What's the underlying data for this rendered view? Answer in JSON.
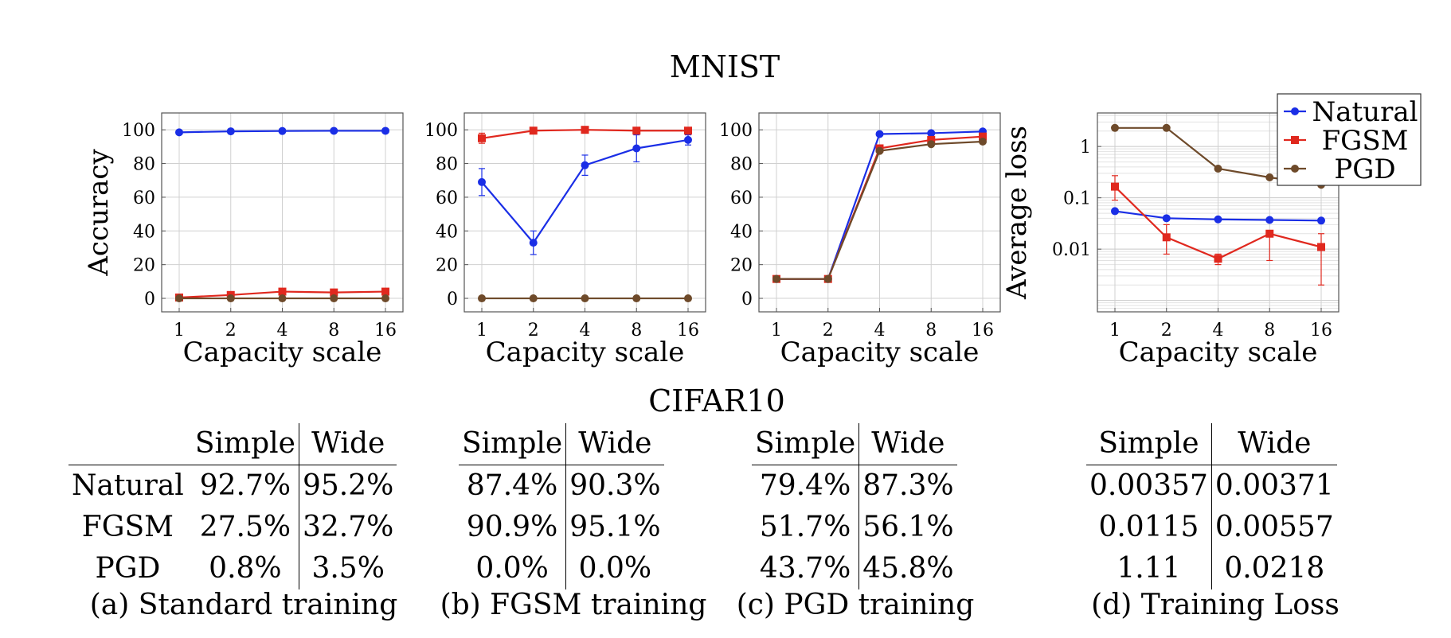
{
  "top_title": "MNIST",
  "bottom_title": "CIFAR10",
  "colors": {
    "Natural": "#1a2ee6",
    "FGSM": "#e0281e",
    "PGD": "#6e4a2a"
  },
  "chart_data": [
    {
      "type": "line",
      "panel": "a",
      "x": [
        "1",
        "2",
        "4",
        "8",
        "16"
      ],
      "xlabel": "Capacity scale",
      "ylabel": "Accuracy",
      "ylim": [
        -8,
        110
      ],
      "yticks": [
        "0",
        "20",
        "40",
        "60",
        "80",
        "100"
      ],
      "grid": true,
      "series": [
        {
          "name": "Natural",
          "marker": "circle",
          "values": [
            98.5,
            99.1,
            99.3,
            99.4,
            99.4
          ],
          "err": [
            0,
            0,
            0,
            0,
            0
          ]
        },
        {
          "name": "FGSM",
          "marker": "square",
          "values": [
            0.5,
            2.0,
            4.0,
            3.5,
            4.0
          ],
          "err": [
            0,
            0,
            0,
            0,
            0
          ]
        },
        {
          "name": "PGD",
          "marker": "circle",
          "values": [
            0.0,
            0.0,
            0.0,
            0.0,
            0.0
          ],
          "err": [
            0,
            0,
            0,
            0,
            0
          ]
        }
      ]
    },
    {
      "type": "line",
      "panel": "b",
      "x": [
        "1",
        "2",
        "4",
        "8",
        "16"
      ],
      "xlabel": "Capacity scale",
      "ylabel": "",
      "ylim": [
        -8,
        110
      ],
      "yticks": [
        "0",
        "20",
        "40",
        "60",
        "80",
        "100"
      ],
      "grid": true,
      "series": [
        {
          "name": "Natural",
          "marker": "circle",
          "values": [
            69,
            33,
            79,
            89,
            94
          ],
          "err": [
            8,
            7,
            6,
            8,
            3
          ]
        },
        {
          "name": "FGSM",
          "marker": "square",
          "values": [
            95,
            99.5,
            100,
            99.5,
            99.5
          ],
          "err": [
            3,
            0,
            0,
            0,
            0
          ]
        },
        {
          "name": "PGD",
          "marker": "circle",
          "values": [
            0.0,
            0.0,
            0.0,
            0.0,
            0.0
          ],
          "err": [
            0,
            0,
            0,
            0,
            0
          ]
        }
      ]
    },
    {
      "type": "line",
      "panel": "c",
      "x": [
        "1",
        "2",
        "4",
        "8",
        "16"
      ],
      "xlabel": "Capacity scale",
      "ylabel": "",
      "ylim": [
        -8,
        110
      ],
      "yticks": [
        "0",
        "20",
        "40",
        "60",
        "80",
        "100"
      ],
      "grid": true,
      "series": [
        {
          "name": "Natural",
          "marker": "circle",
          "values": [
            11.5,
            11.5,
            97.5,
            98,
            99
          ],
          "err": [
            0,
            0,
            0,
            0,
            0
          ]
        },
        {
          "name": "FGSM",
          "marker": "square",
          "values": [
            11.5,
            11.5,
            89,
            94,
            96
          ],
          "err": [
            0,
            0,
            0,
            0,
            0
          ]
        },
        {
          "name": "PGD",
          "marker": "circle",
          "values": [
            11.5,
            11.5,
            87.5,
            91.5,
            93
          ],
          "err": [
            0,
            0,
            0,
            0,
            0
          ]
        }
      ]
    },
    {
      "type": "line",
      "panel": "d",
      "x": [
        "1",
        "2",
        "4",
        "8",
        "16"
      ],
      "xlabel": "Capacity scale",
      "ylabel": "Average loss",
      "yscale": "log",
      "ylim": [
        0.0006,
        4.5
      ],
      "yticks": [
        "0.01",
        "0.1",
        "1"
      ],
      "grid": true,
      "legend": "top-right",
      "series": [
        {
          "name": "Natural",
          "marker": "circle",
          "values": [
            0.055,
            0.04,
            0.038,
            0.037,
            0.036
          ],
          "err_low": [
            0.055,
            0.04,
            0.038,
            0.037,
            0.036
          ],
          "err_high": [
            0.055,
            0.04,
            0.038,
            0.037,
            0.036
          ]
        },
        {
          "name": "FGSM",
          "marker": "square",
          "values": [
            0.165,
            0.017,
            0.0065,
            0.02,
            0.011
          ],
          "err_low": [
            0.09,
            0.008,
            0.005,
            0.006,
            0.002
          ],
          "err_high": [
            0.27,
            0.03,
            0.008,
            0.02,
            0.02
          ]
        },
        {
          "name": "PGD",
          "marker": "circle",
          "values": [
            2.3,
            2.3,
            0.37,
            0.25,
            0.18
          ],
          "err_low": [
            2.3,
            2.3,
            0.37,
            0.25,
            0.18
          ],
          "err_high": [
            2.3,
            2.3,
            0.37,
            0.25,
            0.18
          ]
        }
      ]
    }
  ],
  "tables": [
    {
      "caption": "(a) Standard training",
      "row_labels": [
        "Natural",
        "FGSM",
        "PGD"
      ],
      "columns": [
        "Simple",
        "Wide"
      ],
      "rows": [
        [
          "92.7%",
          "95.2%"
        ],
        [
          "27.5%",
          "32.7%"
        ],
        [
          "0.8%",
          "3.5%"
        ]
      ]
    },
    {
      "caption": "(b) FGSM training",
      "row_labels": [],
      "columns": [
        "Simple",
        "Wide"
      ],
      "rows": [
        [
          "87.4%",
          "90.3%"
        ],
        [
          "90.9%",
          "95.1%"
        ],
        [
          "0.0%",
          "0.0%"
        ]
      ]
    },
    {
      "caption": "(c) PGD training",
      "row_labels": [],
      "columns": [
        "Simple",
        "Wide"
      ],
      "rows": [
        [
          "79.4%",
          "87.3%"
        ],
        [
          "51.7%",
          "56.1%"
        ],
        [
          "43.7%",
          "45.8%"
        ]
      ]
    },
    {
      "caption": "(d) Training Loss",
      "row_labels": [],
      "columns": [
        "Simple",
        "Wide"
      ],
      "rows": [
        [
          "0.00357",
          "0.00371"
        ],
        [
          "0.0115",
          "0.00557"
        ],
        [
          "1.11",
          "0.0218"
        ]
      ]
    }
  ]
}
